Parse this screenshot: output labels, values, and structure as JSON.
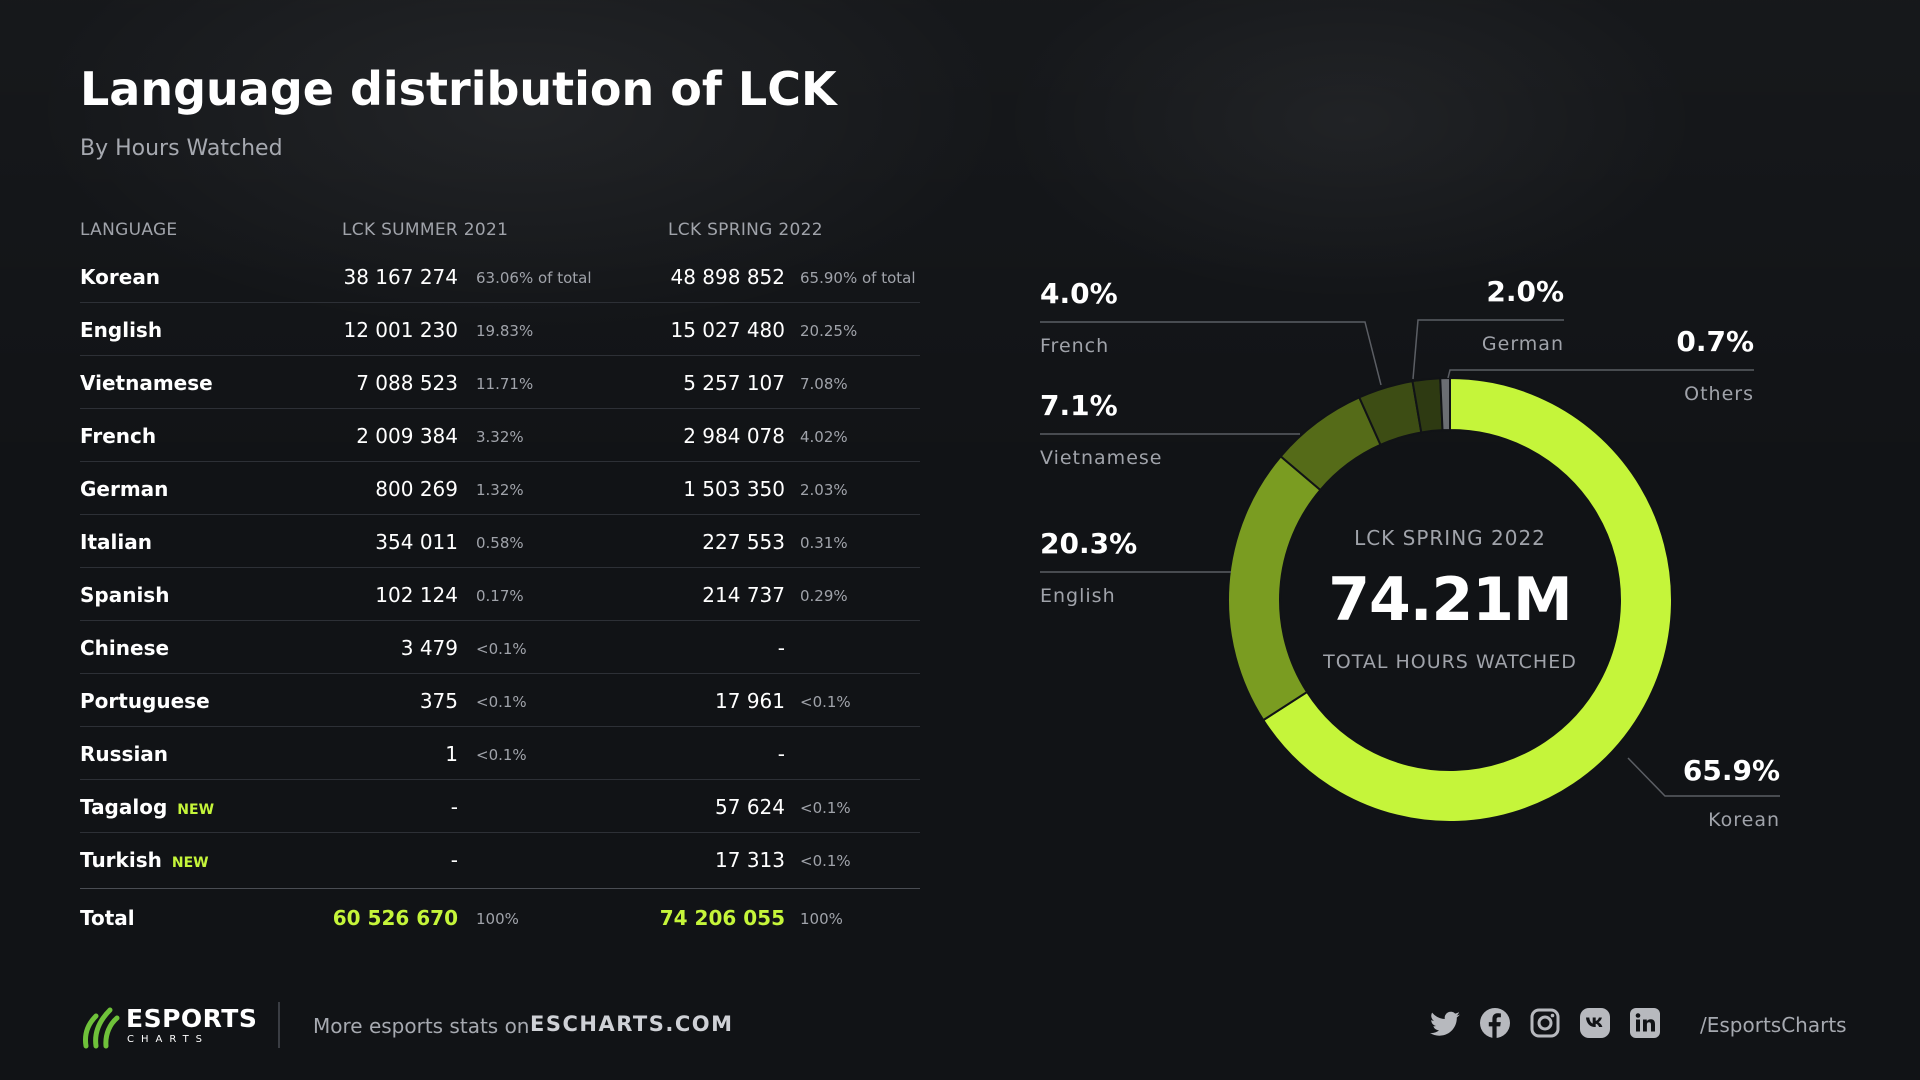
{
  "header": {
    "title": "Language distribution of LCK",
    "subtitle": "By Hours Watched"
  },
  "table": {
    "columns": [
      "LANGUAGE",
      "LCK SUMMER 2021",
      "LCK SPRING 2022"
    ],
    "rows": [
      {
        "language": "Korean",
        "badge": "",
        "summer_value": "38 167 274",
        "summer_pct": "63.06% of total",
        "spring_value": "48 898 852",
        "spring_pct": "65.90% of total"
      },
      {
        "language": "English",
        "badge": "",
        "summer_value": "12 001 230",
        "summer_pct": "19.83%",
        "spring_value": "15 027 480",
        "spring_pct": "20.25%"
      },
      {
        "language": "Vietnamese",
        "badge": "",
        "summer_value": "7 088 523",
        "summer_pct": "11.71%",
        "spring_value": "5 257 107",
        "spring_pct": "7.08%"
      },
      {
        "language": "French",
        "badge": "",
        "summer_value": "2 009 384",
        "summer_pct": "3.32%",
        "spring_value": "2 984 078",
        "spring_pct": "4.02%"
      },
      {
        "language": "German",
        "badge": "",
        "summer_value": "800 269",
        "summer_pct": "1.32%",
        "spring_value": "1 503 350",
        "spring_pct": "2.03%"
      },
      {
        "language": "Italian",
        "badge": "",
        "summer_value": "354 011",
        "summer_pct": "0.58%",
        "spring_value": "227 553",
        "spring_pct": "0.31%"
      },
      {
        "language": "Spanish",
        "badge": "",
        "summer_value": "102 124",
        "summer_pct": "0.17%",
        "spring_value": "214 737",
        "spring_pct": "0.29%"
      },
      {
        "language": "Chinese",
        "badge": "",
        "summer_value": "3 479",
        "summer_pct": "<0.1%",
        "spring_value": "-",
        "spring_pct": ""
      },
      {
        "language": "Portuguese",
        "badge": "",
        "summer_value": "375",
        "summer_pct": "<0.1%",
        "spring_value": "17 961",
        "spring_pct": "<0.1%"
      },
      {
        "language": "Russian",
        "badge": "",
        "summer_value": "1",
        "summer_pct": "<0.1%",
        "spring_value": "-",
        "spring_pct": ""
      },
      {
        "language": "Tagalog",
        "badge": "NEW",
        "summer_value": "-",
        "summer_pct": "",
        "spring_value": "57 624",
        "spring_pct": "<0.1%"
      },
      {
        "language": "Turkish",
        "badge": "NEW",
        "summer_value": "-",
        "summer_pct": "",
        "spring_value": "17 313",
        "spring_pct": "<0.1%"
      }
    ],
    "total": {
      "label": "Total",
      "summer_value": "60 526 670",
      "summer_pct": "100%",
      "spring_value": "74 206 055",
      "spring_pct": "100%"
    }
  },
  "chart_data": {
    "type": "pie",
    "donut": true,
    "center_title": "LCK SPRING 2022",
    "center_value": "74.21M",
    "center_caption": "TOTAL HOURS WATCHED",
    "slices": [
      {
        "label": "Korean",
        "value": 65.9,
        "value_text": "65.9%",
        "color": "#c5f53a"
      },
      {
        "label": "English",
        "value": 20.3,
        "value_text": "20.3%",
        "color": "#7a9c21"
      },
      {
        "label": "Vietnamese",
        "value": 7.1,
        "value_text": "7.1%",
        "color": "#556b18"
      },
      {
        "label": "French",
        "value": 4.0,
        "value_text": "4.0%",
        "color": "#3d4d14"
      },
      {
        "label": "German",
        "value": 2.0,
        "value_text": "2.0%",
        "color": "#2e3a12"
      },
      {
        "label": "Others",
        "value": 0.7,
        "value_text": "0.7%",
        "color": "#6b6e73"
      }
    ]
  },
  "footer": {
    "brand_name": "ESPORTS",
    "brand_sub": "CHARTS",
    "more_text": "More esports stats on",
    "more_link": "ESCHARTS.COM",
    "social_icons": [
      "twitter-icon",
      "facebook-icon",
      "instagram-icon",
      "vk-icon",
      "linkedin-icon"
    ],
    "handle": "/EsportsCharts"
  },
  "colors": {
    "background": "#111316",
    "accent": "#c5f53a",
    "muted_text": "#a0a3aa"
  }
}
